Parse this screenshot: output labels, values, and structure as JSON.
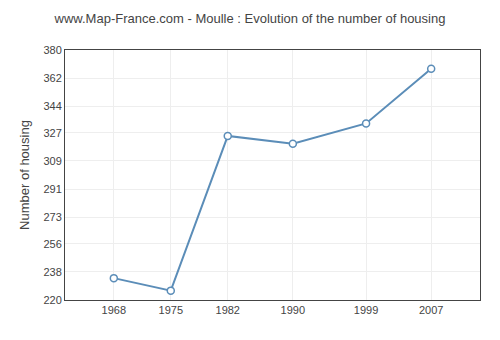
{
  "chart_data": {
    "type": "line",
    "title": "www.Map-France.com - Moulle : Evolution of the number of housing",
    "ylabel": "Number of housing",
    "x": [
      1968,
      1975,
      1982,
      1990,
      1999,
      2007
    ],
    "values": [
      234,
      226,
      325,
      320,
      333,
      368
    ],
    "color": "#5b8db8",
    "marker": "circle",
    "line_style": "solid",
    "xlim": [
      1962,
      2013
    ],
    "xticks": [
      1968,
      1975,
      1982,
      1990,
      1999,
      2007
    ],
    "ylim": [
      220,
      380
    ],
    "yticks": [
      220,
      238,
      256,
      273,
      291,
      309,
      327,
      344,
      362,
      380
    ],
    "grid": true
  }
}
